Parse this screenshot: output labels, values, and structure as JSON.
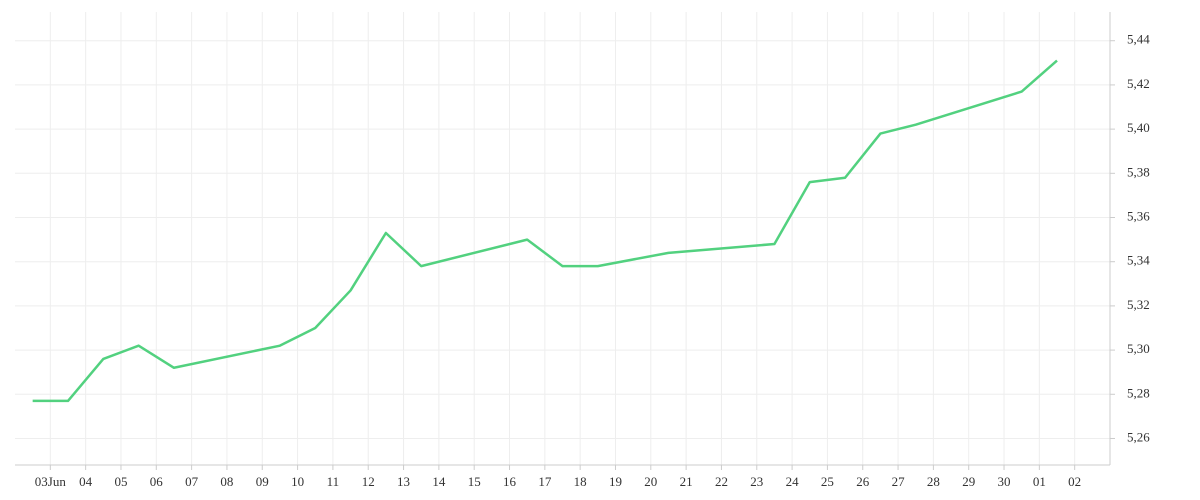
{
  "chart_data": {
    "type": "line",
    "x": [
      -0.5,
      0.5,
      1.5,
      2.5,
      3.5,
      6.5,
      7.5,
      8.5,
      9.5,
      10.5,
      13.5,
      14.5,
      15.5,
      17.5,
      20.5,
      21.5,
      22.5,
      23.5,
      24.5,
      27.5,
      28.5
    ],
    "series": [
      {
        "color": "#52d17f",
        "values": [
          5.277,
          5.277,
          5.296,
          5.302,
          5.292,
          5.302,
          5.31,
          5.327,
          5.353,
          5.338,
          5.35,
          5.338,
          5.338,
          5.344,
          5.348,
          5.376,
          5.378,
          5.398,
          5.402,
          5.417,
          5.431
        ]
      }
    ],
    "xlim": [
      -1,
      30
    ],
    "xticks": [
      {
        "value": 0,
        "label": "03Jun"
      },
      {
        "value": 1,
        "label": "04"
      },
      {
        "value": 2,
        "label": "05"
      },
      {
        "value": 3,
        "label": "06"
      },
      {
        "value": 4,
        "label": "07"
      },
      {
        "value": 5,
        "label": "08"
      },
      {
        "value": 6,
        "label": "09"
      },
      {
        "value": 7,
        "label": "10"
      },
      {
        "value": 8,
        "label": "11"
      },
      {
        "value": 9,
        "label": "12"
      },
      {
        "value": 10,
        "label": "13"
      },
      {
        "value": 11,
        "label": "14"
      },
      {
        "value": 12,
        "label": "15"
      },
      {
        "value": 13,
        "label": "16"
      },
      {
        "value": 14,
        "label": "17"
      },
      {
        "value": 15,
        "label": "18"
      },
      {
        "value": 16,
        "label": "19"
      },
      {
        "value": 17,
        "label": "20"
      },
      {
        "value": 18,
        "label": "21"
      },
      {
        "value": 19,
        "label": "22"
      },
      {
        "value": 20,
        "label": "23"
      },
      {
        "value": 21,
        "label": "24"
      },
      {
        "value": 22,
        "label": "25"
      },
      {
        "value": 23,
        "label": "26"
      },
      {
        "value": 24,
        "label": "27"
      },
      {
        "value": 25,
        "label": "28"
      },
      {
        "value": 26,
        "label": "29"
      },
      {
        "value": 27,
        "label": "30"
      },
      {
        "value": 28,
        "label": "01"
      },
      {
        "value": 29,
        "label": "02"
      }
    ],
    "ylim": [
      5.248,
      5.453
    ],
    "yticks": [
      {
        "value": 5.26,
        "label": "5,26"
      },
      {
        "value": 5.28,
        "label": "5,28"
      },
      {
        "value": 5.3,
        "label": "5,30"
      },
      {
        "value": 5.32,
        "label": "5,32"
      },
      {
        "value": 5.34,
        "label": "5,34"
      },
      {
        "value": 5.36,
        "label": "5,36"
      },
      {
        "value": 5.38,
        "label": "5,38"
      },
      {
        "value": 5.4,
        "label": "5,40"
      },
      {
        "value": 5.42,
        "label": "5,42"
      },
      {
        "value": 5.44,
        "label": "5,44"
      }
    ],
    "grid": true,
    "y_axis_side": "right"
  }
}
